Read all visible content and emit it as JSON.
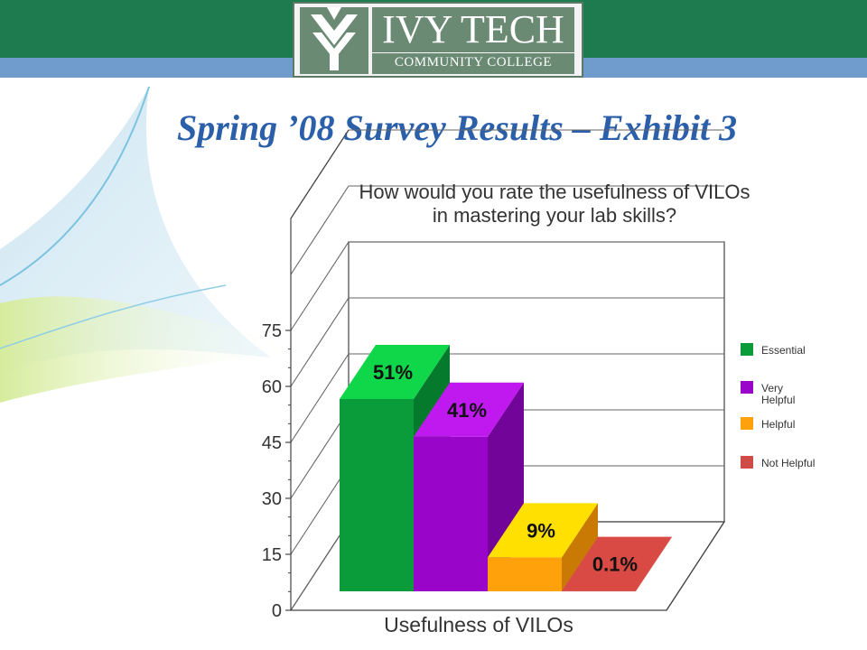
{
  "logo": {
    "line1": "IVY TECH",
    "line2": "COMMUNITY COLLEGE"
  },
  "slide_title": "Spring ’08 Survey Results – Exhibit 3",
  "colors": {
    "header_green": "#1e7b4f",
    "header_blue": "#6f9ccc",
    "title_blue": "#2b5fa9"
  },
  "chart_data": {
    "type": "bar",
    "title_lines": [
      "How would you rate the usefulness of VILOs",
      "in mastering your lab skills?"
    ],
    "xlabel": "Usefulness of VILOs",
    "ylabel": "",
    "ylim": [
      0,
      75
    ],
    "yticks": [
      0,
      15,
      30,
      45,
      60,
      75
    ],
    "grid": true,
    "legend_position": "right",
    "categories": [
      "Essential",
      "Very Helpful",
      "Helpful",
      "Not Helpful"
    ],
    "legend_labels": [
      [
        "Essential"
      ],
      [
        "Very",
        "Helpful"
      ],
      [
        "Helpful"
      ],
      [
        "Not Helpful"
      ]
    ],
    "values": [
      51,
      41,
      9,
      0.1
    ],
    "data_labels": [
      "51%",
      "41%",
      "9%",
      "0.1%"
    ],
    "colors": [
      {
        "front": "#0a9b3a",
        "top": "#10d64a",
        "side": "#067a2c",
        "label_bg": "#10d64a"
      },
      {
        "front": "#9a06c9",
        "top": "#c019f0",
        "side": "#72049a",
        "label_bg": "#c019f0"
      },
      {
        "front": "#ffa10a",
        "top": "#ffe000",
        "side": "#c97a05",
        "label_bg": "#ffe000"
      },
      {
        "front": "#cf4b45",
        "top": "#d94a44",
        "side": "#a83530",
        "label_bg": "#d94a44"
      }
    ]
  }
}
